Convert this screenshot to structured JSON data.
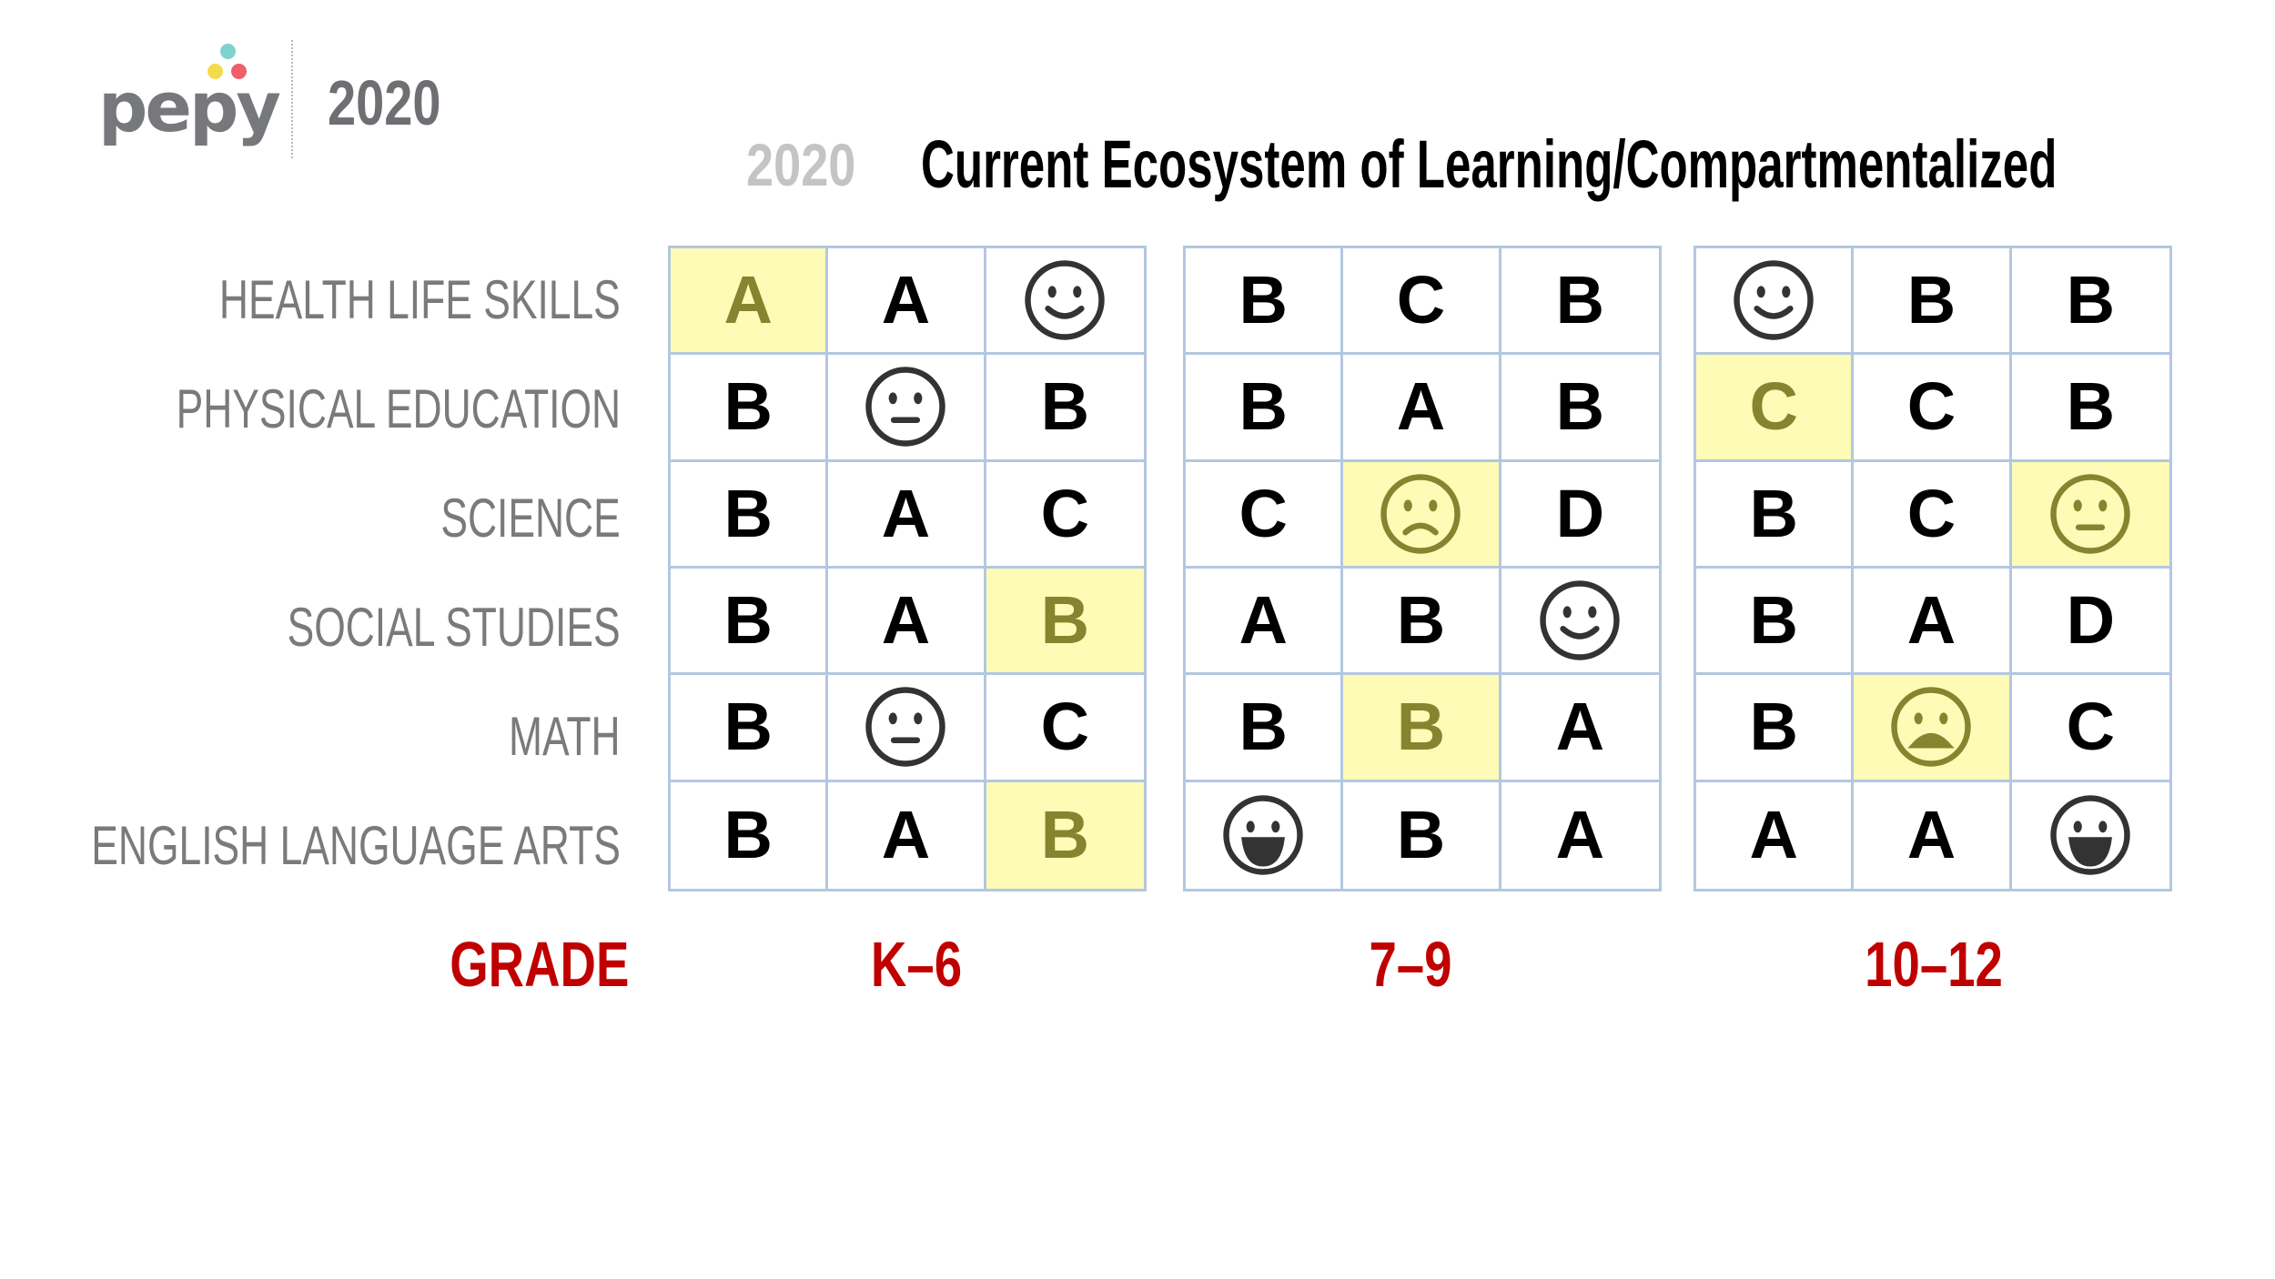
{
  "header": {
    "logo_text": "pepy",
    "year": "2020",
    "title_year": "2020",
    "title": "Current Ecosystem of Learning/Compartmentalized"
  },
  "colors": {
    "highlight": "#fdfbb6",
    "grid_border": "#b3c7e0",
    "footer_red": "#c00000",
    "logo_dot_teal": "#7fd3cc",
    "logo_dot_yellow": "#f2dc4b",
    "logo_dot_pink": "#ee5f6b"
  },
  "subjects": [
    "HEALTH LIFE SKILLS",
    "PHYSICAL EDUCATION",
    "SCIENCE",
    "SOCIAL STUDIES",
    "MATH",
    "ENGLISH LANGUAGE ARTS"
  ],
  "grade_label": "GRADE",
  "grade_groups": [
    {
      "label": "K–6",
      "rows": [
        [
          {
            "v": "A",
            "hl": true
          },
          {
            "v": "A"
          },
          {
            "face": "smile"
          }
        ],
        [
          {
            "v": "B"
          },
          {
            "face": "neutral"
          },
          {
            "v": "B"
          }
        ],
        [
          {
            "v": "B"
          },
          {
            "v": "A"
          },
          {
            "v": "C"
          }
        ],
        [
          {
            "v": "B"
          },
          {
            "v": "A"
          },
          {
            "v": "B",
            "hl": true
          }
        ],
        [
          {
            "v": "B"
          },
          {
            "face": "neutral"
          },
          {
            "v": "C"
          }
        ],
        [
          {
            "v": "B"
          },
          {
            "v": "A"
          },
          {
            "v": "B",
            "hl": true
          }
        ]
      ]
    },
    {
      "label": "7–9",
      "rows": [
        [
          {
            "v": "B"
          },
          {
            "v": "C"
          },
          {
            "v": "B"
          }
        ],
        [
          {
            "v": "B"
          },
          {
            "v": "A"
          },
          {
            "v": "B"
          }
        ],
        [
          {
            "v": "C"
          },
          {
            "face": "sad",
            "hl": true
          },
          {
            "v": "D"
          }
        ],
        [
          {
            "v": "A"
          },
          {
            "v": "B"
          },
          {
            "face": "smile"
          }
        ],
        [
          {
            "v": "B"
          },
          {
            "v": "B",
            "hl": true
          },
          {
            "v": "A"
          }
        ],
        [
          {
            "face": "grin"
          },
          {
            "v": "B"
          },
          {
            "v": "A"
          }
        ]
      ]
    },
    {
      "label": "10–12",
      "rows": [
        [
          {
            "face": "smile"
          },
          {
            "v": "B"
          },
          {
            "v": "B"
          }
        ],
        [
          {
            "v": "C",
            "hl": true
          },
          {
            "v": "C"
          },
          {
            "v": "B"
          }
        ],
        [
          {
            "v": "B"
          },
          {
            "v": "C"
          },
          {
            "face": "neutral",
            "hl": true
          }
        ],
        [
          {
            "v": "B"
          },
          {
            "v": "A"
          },
          {
            "v": "D"
          }
        ],
        [
          {
            "v": "B"
          },
          {
            "face": "frown",
            "hl": true
          },
          {
            "v": "C"
          }
        ],
        [
          {
            "v": "A"
          },
          {
            "v": "A"
          },
          {
            "face": "grin"
          }
        ]
      ]
    }
  ]
}
